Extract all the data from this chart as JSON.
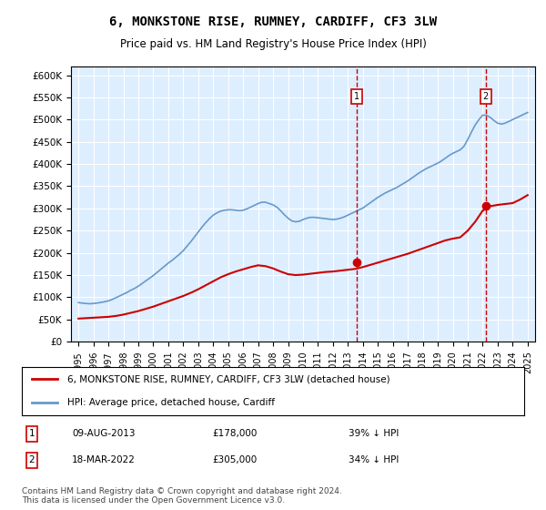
{
  "title": "6, MONKSTONE RISE, RUMNEY, CARDIFF, CF3 3LW",
  "subtitle": "Price paid vs. HM Land Registry's House Price Index (HPI)",
  "ylabel": "",
  "xlabel": "",
  "ylim": [
    0,
    620000
  ],
  "yticks": [
    0,
    50000,
    100000,
    150000,
    200000,
    250000,
    300000,
    350000,
    400000,
    450000,
    500000,
    550000,
    600000
  ],
  "ytick_labels": [
    "£0",
    "£50K",
    "£100K",
    "£150K",
    "£200K",
    "£250K",
    "£300K",
    "£350K",
    "£400K",
    "£450K",
    "£500K",
    "£550K",
    "£600K"
  ],
  "xlim_start": 1995.0,
  "xlim_end": 2025.5,
  "xtick_labels": [
    "1995",
    "1996",
    "1997",
    "1998",
    "1999",
    "2000",
    "2001",
    "2002",
    "2003",
    "2004",
    "2005",
    "2006",
    "2007",
    "2008",
    "2009",
    "2010",
    "2011",
    "2012",
    "2013",
    "2014",
    "2015",
    "2016",
    "2017",
    "2018",
    "2019",
    "2020",
    "2021",
    "2022",
    "2023",
    "2024",
    "2025"
  ],
  "hpi_color": "#6699cc",
  "price_color": "#cc0000",
  "marker_color": "#cc0000",
  "vline_color": "#cc0000",
  "bg_color": "#ddeeff",
  "grid_color": "#ffffff",
  "legend_label_red": "6, MONKSTONE RISE, RUMNEY, CARDIFF, CF3 3LW (detached house)",
  "legend_label_blue": "HPI: Average price, detached house, Cardiff",
  "sale1_label": "1",
  "sale1_date": "09-AUG-2013",
  "sale1_price": "£178,000",
  "sale1_pct": "39% ↓ HPI",
  "sale1_year": 2013.6,
  "sale1_value": 178000,
  "sale2_label": "2",
  "sale2_date": "18-MAR-2022",
  "sale2_price": "£305,000",
  "sale2_pct": "34% ↓ HPI",
  "sale2_year": 2022.2,
  "sale2_value": 305000,
  "footer": "Contains HM Land Registry data © Crown copyright and database right 2024.\nThis data is licensed under the Open Government Licence v3.0.",
  "hpi_years": [
    1995.0,
    1995.25,
    1995.5,
    1995.75,
    1996.0,
    1996.25,
    1996.5,
    1996.75,
    1997.0,
    1997.25,
    1997.5,
    1997.75,
    1998.0,
    1998.25,
    1998.5,
    1998.75,
    1999.0,
    1999.25,
    1999.5,
    1999.75,
    2000.0,
    2000.25,
    2000.5,
    2000.75,
    2001.0,
    2001.25,
    2001.5,
    2001.75,
    2002.0,
    2002.25,
    2002.5,
    2002.75,
    2003.0,
    2003.25,
    2003.5,
    2003.75,
    2004.0,
    2004.25,
    2004.5,
    2004.75,
    2005.0,
    2005.25,
    2005.5,
    2005.75,
    2006.0,
    2006.25,
    2006.5,
    2006.75,
    2007.0,
    2007.25,
    2007.5,
    2007.75,
    2008.0,
    2008.25,
    2008.5,
    2008.75,
    2009.0,
    2009.25,
    2009.5,
    2009.75,
    2010.0,
    2010.25,
    2010.5,
    2010.75,
    2011.0,
    2011.25,
    2011.5,
    2011.75,
    2012.0,
    2012.25,
    2012.5,
    2012.75,
    2013.0,
    2013.25,
    2013.5,
    2013.75,
    2014.0,
    2014.25,
    2014.5,
    2014.75,
    2015.0,
    2015.25,
    2015.5,
    2015.75,
    2016.0,
    2016.25,
    2016.5,
    2016.75,
    2017.0,
    2017.25,
    2017.5,
    2017.75,
    2018.0,
    2018.25,
    2018.5,
    2018.75,
    2019.0,
    2019.25,
    2019.5,
    2019.75,
    2020.0,
    2020.25,
    2020.5,
    2020.75,
    2021.0,
    2021.25,
    2021.5,
    2021.75,
    2022.0,
    2022.25,
    2022.5,
    2022.75,
    2023.0,
    2023.25,
    2023.5,
    2023.75,
    2024.0,
    2024.25,
    2024.5,
    2024.75,
    2025.0
  ],
  "hpi_values": [
    88000,
    87000,
    86000,
    85500,
    86000,
    87000,
    88500,
    90000,
    92000,
    95000,
    99000,
    103000,
    107000,
    111000,
    116000,
    120000,
    125000,
    131000,
    137000,
    143000,
    149000,
    156000,
    163000,
    170000,
    177000,
    183000,
    190000,
    197000,
    205000,
    215000,
    225000,
    236000,
    247000,
    258000,
    268000,
    277000,
    285000,
    290000,
    294000,
    296000,
    297000,
    297000,
    296000,
    295000,
    296000,
    299000,
    303000,
    307000,
    311000,
    314000,
    314000,
    311000,
    308000,
    303000,
    295000,
    286000,
    278000,
    272000,
    270000,
    271000,
    275000,
    278000,
    280000,
    280000,
    279000,
    278000,
    277000,
    276000,
    275000,
    276000,
    278000,
    281000,
    285000,
    289000,
    293000,
    297000,
    301000,
    307000,
    313000,
    319000,
    325000,
    330000,
    335000,
    339000,
    343000,
    347000,
    352000,
    357000,
    362000,
    368000,
    374000,
    380000,
    385000,
    390000,
    394000,
    398000,
    402000,
    407000,
    413000,
    419000,
    424000,
    428000,
    432000,
    440000,
    455000,
    472000,
    488000,
    500000,
    510000,
    510000,
    505000,
    498000,
    492000,
    490000,
    492000,
    496000,
    500000,
    504000,
    508000,
    512000,
    516000
  ],
  "price_years": [
    1995.0,
    1995.5,
    1996.0,
    1996.5,
    1997.0,
    1997.5,
    1998.0,
    1998.5,
    1999.0,
    1999.5,
    2000.0,
    2000.5,
    2001.0,
    2001.5,
    2002.0,
    2002.5,
    2003.0,
    2003.5,
    2004.0,
    2004.5,
    2005.0,
    2005.5,
    2006.0,
    2006.5,
    2007.0,
    2007.5,
    2008.0,
    2008.5,
    2009.0,
    2009.5,
    2010.0,
    2010.5,
    2011.0,
    2011.5,
    2012.0,
    2012.5,
    2013.0,
    2013.5,
    2014.0,
    2014.5,
    2015.0,
    2015.5,
    2016.0,
    2016.5,
    2017.0,
    2017.5,
    2018.0,
    2018.5,
    2019.0,
    2019.5,
    2020.0,
    2020.5,
    2021.0,
    2021.5,
    2022.0,
    2022.5,
    2023.0,
    2023.5,
    2024.0,
    2024.5,
    2025.0
  ],
  "price_values": [
    52000,
    53000,
    54000,
    55000,
    56000,
    58000,
    61000,
    65000,
    69000,
    74000,
    79000,
    85000,
    91000,
    97000,
    103000,
    110000,
    118000,
    127000,
    136000,
    145000,
    152000,
    158000,
    163000,
    168000,
    172000,
    170000,
    165000,
    158000,
    152000,
    150000,
    151000,
    153000,
    155000,
    157000,
    158000,
    160000,
    162000,
    164000,
    168000,
    173000,
    178000,
    183000,
    188000,
    193000,
    198000,
    204000,
    210000,
    216000,
    222000,
    228000,
    232000,
    235000,
    250000,
    270000,
    295000,
    305000,
    308000,
    310000,
    312000,
    320000,
    330000
  ]
}
